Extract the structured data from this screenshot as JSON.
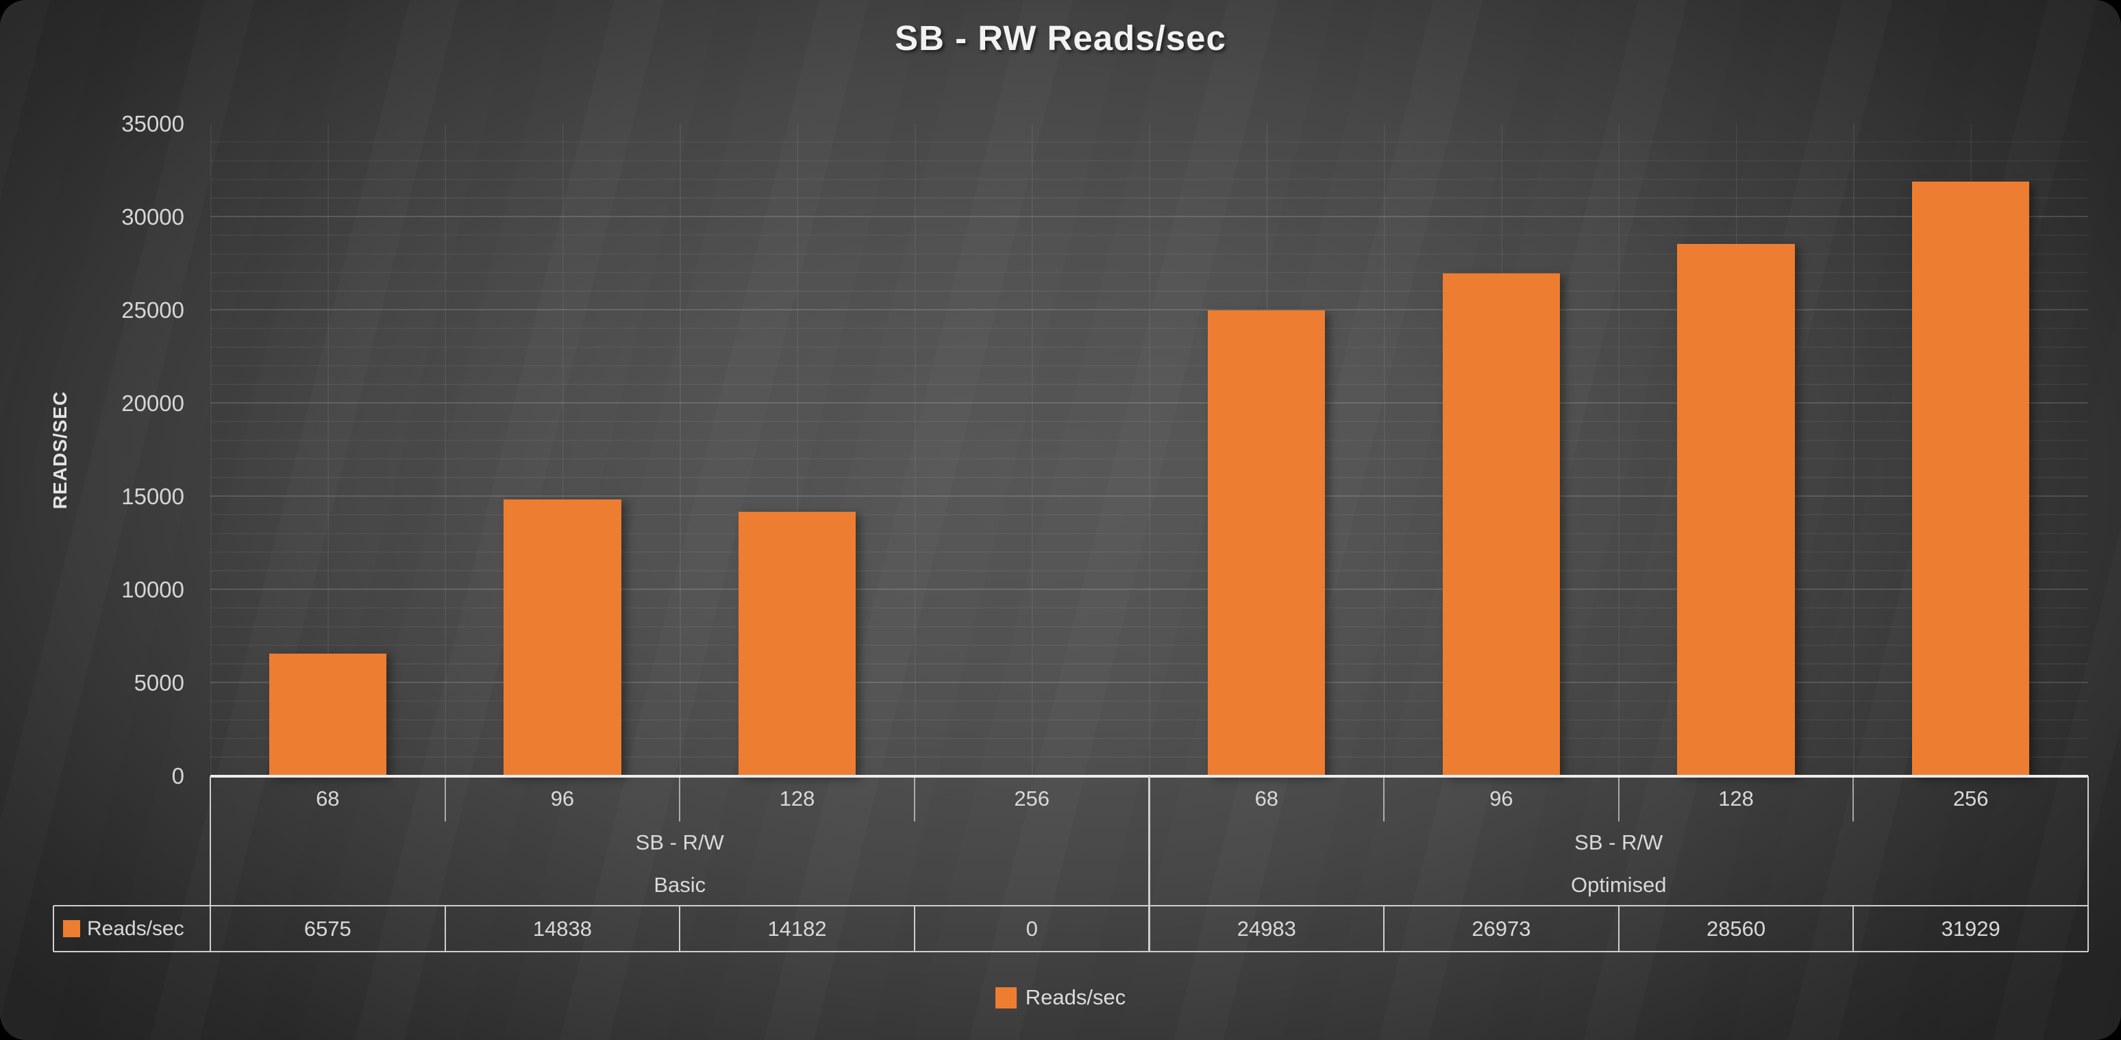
{
  "chart_data": {
    "type": "bar",
    "title": "SB - RW Reads/sec",
    "ylabel": "READS/SEC",
    "ylim": [
      0,
      35000
    ],
    "y_major_unit": 5000,
    "y_minor_unit": 1000,
    "grid": "major and minor horizontal gridlines, vertical gridlines at category and mid-category boundaries",
    "categories": [
      "68",
      "96",
      "128",
      "256",
      "68",
      "96",
      "128",
      "256"
    ],
    "groups": [
      {
        "label": "SB - R/W",
        "sublabel": "Basic",
        "span": 4
      },
      {
        "label": "SB - R/W",
        "sublabel": "Optimised",
        "span": 4
      }
    ],
    "series": [
      {
        "name": "Reads/sec",
        "color": "#ED7D31",
        "values": [
          6575,
          14838,
          14182,
          0,
          24983,
          26973,
          28560,
          31929
        ]
      }
    ],
    "legend": {
      "position": "bottom",
      "label": "Reads/sec"
    },
    "data_table_shown": true
  },
  "colors": {
    "bar": "#ED7D31",
    "background_center": "#575757",
    "background_edge": "#242424",
    "text": "#D9D9D9",
    "title_text": "#F2F2F2",
    "table_border": "#CFCFCF",
    "axis_line": "#EEEEEE"
  }
}
